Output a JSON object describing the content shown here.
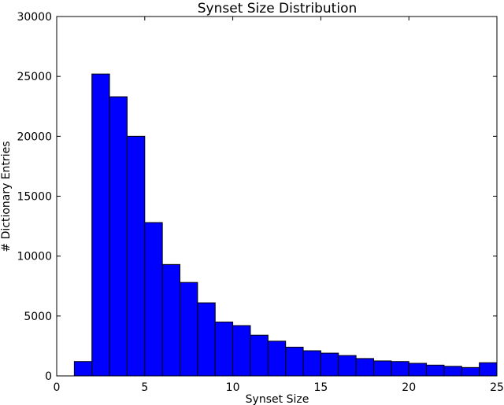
{
  "chart_data": {
    "type": "bar",
    "title": "Synset Size Distribution",
    "xlabel": "Synset Size",
    "ylabel": "# Dictionary Entries",
    "xlim": [
      0,
      25
    ],
    "ylim": [
      0,
      30000
    ],
    "xticks": [
      0,
      5,
      10,
      15,
      20,
      25
    ],
    "yticks": [
      0,
      5000,
      10000,
      15000,
      20000,
      25000,
      30000
    ],
    "bar_color": "#0000ff",
    "grid": false,
    "legend": "none",
    "bins": [
      {
        "x0": 1,
        "x1": 2,
        "value": 1200
      },
      {
        "x0": 2,
        "x1": 3,
        "value": 25200
      },
      {
        "x0": 3,
        "x1": 4,
        "value": 23300
      },
      {
        "x0": 4,
        "x1": 5,
        "value": 20000
      },
      {
        "x0": 5,
        "x1": 6,
        "value": 12800
      },
      {
        "x0": 6,
        "x1": 7,
        "value": 9300
      },
      {
        "x0": 7,
        "x1": 8,
        "value": 7800
      },
      {
        "x0": 8,
        "x1": 9,
        "value": 6100
      },
      {
        "x0": 9,
        "x1": 10,
        "value": 4500
      },
      {
        "x0": 10,
        "x1": 11,
        "value": 4200
      },
      {
        "x0": 11,
        "x1": 12,
        "value": 3400
      },
      {
        "x0": 12,
        "x1": 13,
        "value": 2900
      },
      {
        "x0": 13,
        "x1": 14,
        "value": 2400
      },
      {
        "x0": 14,
        "x1": 15,
        "value": 2100
      },
      {
        "x0": 15,
        "x1": 16,
        "value": 1900
      },
      {
        "x0": 16,
        "x1": 17,
        "value": 1700
      },
      {
        "x0": 17,
        "x1": 18,
        "value": 1450
      },
      {
        "x0": 18,
        "x1": 19,
        "value": 1250
      },
      {
        "x0": 19,
        "x1": 20,
        "value": 1200
      },
      {
        "x0": 20,
        "x1": 21,
        "value": 1050
      },
      {
        "x0": 21,
        "x1": 22,
        "value": 900
      },
      {
        "x0": 22,
        "x1": 23,
        "value": 800
      },
      {
        "x0": 23,
        "x1": 24,
        "value": 700
      },
      {
        "x0": 24,
        "x1": 25,
        "value": 1100
      }
    ]
  }
}
